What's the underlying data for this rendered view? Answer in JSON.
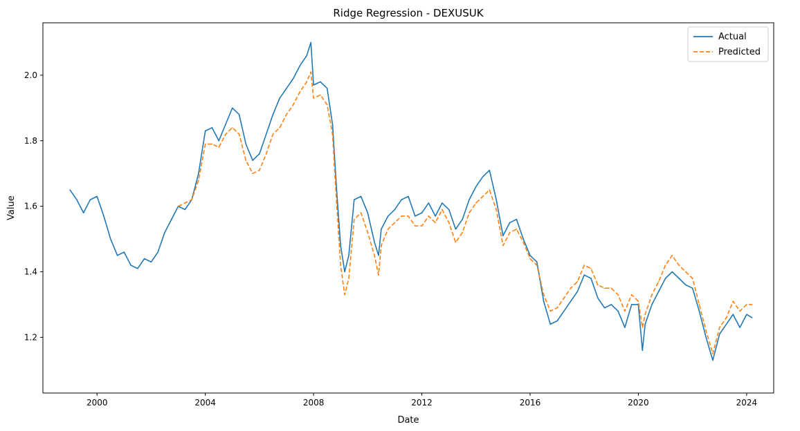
{
  "chart_data": {
    "type": "line",
    "title": "Ridge Regression - DEXUSUK",
    "xlabel": "Date",
    "ylabel": "Value",
    "xlim": [
      1998.0,
      2025.0
    ],
    "ylim": [
      1.03,
      2.16
    ],
    "xticks": [
      2000,
      2004,
      2008,
      2012,
      2016,
      2020,
      2024
    ],
    "xtick_labels": [
      "2000",
      "2004",
      "2008",
      "2012",
      "2016",
      "2020",
      "2024"
    ],
    "yticks": [
      1.2,
      1.4,
      1.6,
      1.8,
      2.0
    ],
    "ytick_labels": [
      "1.2",
      "1.4",
      "1.6",
      "1.8",
      "2.0"
    ],
    "grid": false,
    "legend_position": "top-right",
    "series": [
      {
        "name": "Actual",
        "color": "#1f77b4",
        "style": "solid",
        "x": [
          1999.0,
          1999.25,
          1999.5,
          1999.75,
          2000.0,
          2000.25,
          2000.5,
          2000.75,
          2001.0,
          2001.25,
          2001.5,
          2001.75,
          2002.0,
          2002.25,
          2002.5,
          2002.75,
          2003.0,
          2003.25,
          2003.5,
          2003.75,
          2004.0,
          2004.25,
          2004.5,
          2004.75,
          2005.0,
          2005.25,
          2005.5,
          2005.75,
          2006.0,
          2006.25,
          2006.5,
          2006.75,
          2007.0,
          2007.25,
          2007.5,
          2007.75,
          2007.9,
          2008.0,
          2008.25,
          2008.5,
          2008.7,
          2008.85,
          2009.0,
          2009.15,
          2009.3,
          2009.5,
          2009.75,
          2010.0,
          2010.25,
          2010.4,
          2010.5,
          2010.75,
          2011.0,
          2011.25,
          2011.5,
          2011.75,
          2012.0,
          2012.25,
          2012.5,
          2012.75,
          2013.0,
          2013.25,
          2013.5,
          2013.75,
          2014.0,
          2014.25,
          2014.5,
          2014.75,
          2015.0,
          2015.25,
          2015.5,
          2015.75,
          2016.0,
          2016.25,
          2016.5,
          2016.75,
          2017.0,
          2017.25,
          2017.5,
          2017.75,
          2018.0,
          2018.25,
          2018.5,
          2018.75,
          2019.0,
          2019.25,
          2019.5,
          2019.75,
          2020.0,
          2020.15,
          2020.25,
          2020.5,
          2020.75,
          2021.0,
          2021.25,
          2021.5,
          2021.75,
          2022.0,
          2022.25,
          2022.5,
          2022.75,
          2023.0,
          2023.25,
          2023.5,
          2023.75,
          2024.0,
          2024.2
        ],
        "y": [
          1.65,
          1.62,
          1.58,
          1.62,
          1.63,
          1.57,
          1.5,
          1.45,
          1.46,
          1.42,
          1.41,
          1.44,
          1.43,
          1.46,
          1.52,
          1.56,
          1.6,
          1.59,
          1.62,
          1.7,
          1.83,
          1.84,
          1.8,
          1.85,
          1.9,
          1.88,
          1.79,
          1.74,
          1.76,
          1.82,
          1.88,
          1.93,
          1.96,
          1.99,
          2.03,
          2.06,
          2.1,
          1.97,
          1.98,
          1.96,
          1.85,
          1.65,
          1.48,
          1.4,
          1.45,
          1.62,
          1.63,
          1.58,
          1.49,
          1.45,
          1.53,
          1.57,
          1.59,
          1.62,
          1.63,
          1.57,
          1.58,
          1.61,
          1.57,
          1.61,
          1.59,
          1.53,
          1.56,
          1.62,
          1.66,
          1.69,
          1.71,
          1.62,
          1.51,
          1.55,
          1.56,
          1.5,
          1.45,
          1.43,
          1.31,
          1.24,
          1.25,
          1.28,
          1.31,
          1.34,
          1.39,
          1.38,
          1.32,
          1.29,
          1.3,
          1.28,
          1.23,
          1.3,
          1.3,
          1.16,
          1.24,
          1.3,
          1.34,
          1.38,
          1.4,
          1.38,
          1.36,
          1.35,
          1.28,
          1.2,
          1.13,
          1.21,
          1.24,
          1.27,
          1.23,
          1.27,
          1.26
        ]
      },
      {
        "name": "Predicted",
        "color": "#ff7f0e",
        "style": "dashed",
        "x": [
          2003.0,
          2003.25,
          2003.5,
          2003.75,
          2004.0,
          2004.25,
          2004.5,
          2004.75,
          2005.0,
          2005.25,
          2005.5,
          2005.75,
          2006.0,
          2006.25,
          2006.5,
          2006.75,
          2007.0,
          2007.25,
          2007.5,
          2007.75,
          2007.9,
          2008.0,
          2008.25,
          2008.5,
          2008.7,
          2008.85,
          2009.0,
          2009.15,
          2009.3,
          2009.5,
          2009.75,
          2010.0,
          2010.25,
          2010.4,
          2010.5,
          2010.75,
          2011.0,
          2011.25,
          2011.5,
          2011.75,
          2012.0,
          2012.25,
          2012.5,
          2012.75,
          2013.0,
          2013.25,
          2013.5,
          2013.75,
          2014.0,
          2014.25,
          2014.5,
          2014.75,
          2015.0,
          2015.25,
          2015.5,
          2015.75,
          2016.0,
          2016.25,
          2016.5,
          2016.75,
          2017.0,
          2017.25,
          2017.5,
          2017.75,
          2018.0,
          2018.25,
          2018.5,
          2018.75,
          2019.0,
          2019.25,
          2019.5,
          2019.75,
          2020.0,
          2020.15,
          2020.25,
          2020.5,
          2020.75,
          2021.0,
          2021.25,
          2021.5,
          2021.75,
          2022.0,
          2022.25,
          2022.5,
          2022.75,
          2023.0,
          2023.25,
          2023.5,
          2023.75,
          2024.0,
          2024.2
        ],
        "y": [
          1.6,
          1.61,
          1.62,
          1.68,
          1.79,
          1.79,
          1.78,
          1.82,
          1.84,
          1.82,
          1.74,
          1.7,
          1.71,
          1.76,
          1.82,
          1.84,
          1.88,
          1.91,
          1.95,
          1.98,
          2.01,
          1.93,
          1.94,
          1.91,
          1.82,
          1.61,
          1.42,
          1.33,
          1.38,
          1.56,
          1.58,
          1.52,
          1.45,
          1.39,
          1.48,
          1.53,
          1.55,
          1.57,
          1.57,
          1.54,
          1.54,
          1.57,
          1.55,
          1.59,
          1.55,
          1.49,
          1.52,
          1.58,
          1.61,
          1.63,
          1.65,
          1.59,
          1.48,
          1.52,
          1.53,
          1.49,
          1.44,
          1.42,
          1.33,
          1.28,
          1.29,
          1.32,
          1.35,
          1.37,
          1.42,
          1.41,
          1.36,
          1.35,
          1.35,
          1.33,
          1.28,
          1.33,
          1.31,
          1.23,
          1.27,
          1.33,
          1.37,
          1.42,
          1.45,
          1.42,
          1.4,
          1.38,
          1.3,
          1.22,
          1.15,
          1.23,
          1.26,
          1.31,
          1.28,
          1.3,
          1.3
        ]
      }
    ]
  }
}
